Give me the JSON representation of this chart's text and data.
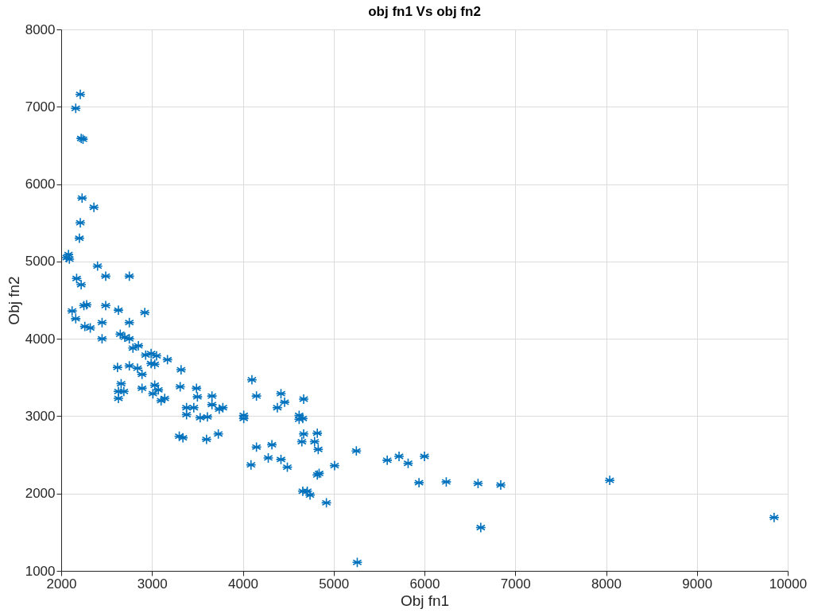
{
  "chart_data": {
    "type": "scatter",
    "title": "obj fn1 Vs obj fn2",
    "xlabel": "Obj fn1",
    "ylabel": "Obj fn2",
    "xlim": [
      2000,
      10000
    ],
    "xticks": [
      2000,
      3000,
      4000,
      5000,
      6000,
      7000,
      8000,
      9000,
      10000
    ],
    "ylim": [
      1000,
      8000
    ],
    "yticks": [
      1000,
      2000,
      3000,
      4000,
      5000,
      6000,
      7000,
      8000
    ],
    "grid": true,
    "marker": "cross",
    "series": [
      {
        "color": "#0072bd",
        "x": [
          2210,
          2160,
          2220,
          2240,
          2230,
          2360,
          2210,
          2200,
          2080,
          2090,
          2060,
          2400,
          2170,
          2220,
          2490,
          2750,
          2120,
          2160,
          2250,
          2280,
          2490,
          2630,
          2920,
          2450,
          2750,
          2260,
          2320,
          2450,
          2650,
          2700,
          2750,
          2790,
          2850,
          2930,
          2990,
          3050,
          3170,
          2620,
          2750,
          2840,
          2890,
          2990,
          3030,
          3320,
          2660,
          2630,
          2690,
          2630,
          2890,
          3030,
          3070,
          3010,
          3100,
          3140,
          3310,
          3490,
          3500,
          3660,
          3660,
          3740,
          3780,
          3380,
          3460,
          3380,
          3530,
          3610,
          4010,
          4010,
          4100,
          4150,
          4420,
          4460,
          4380,
          4670,
          4620,
          4660,
          4620,
          3300,
          3340,
          3600,
          3730,
          4150,
          4320,
          4090,
          4280,
          4420,
          4490,
          4670,
          4650,
          4820,
          4790,
          4830,
          4840,
          4820,
          4660,
          4710,
          4740,
          4920,
          5010,
          5250,
          5260,
          5590,
          5720,
          5820,
          6000,
          5940,
          6240,
          6590,
          6620,
          6840,
          8040,
          9850
        ],
        "values": [
          7160,
          6980,
          6590,
          6580,
          5820,
          5700,
          5500,
          5300,
          5090,
          5030,
          5050,
          4940,
          4780,
          4700,
          4810,
          4810,
          4360,
          4260,
          4430,
          4440,
          4430,
          4370,
          4340,
          4210,
          4210,
          4160,
          4140,
          4000,
          4060,
          4020,
          4000,
          3880,
          3910,
          3790,
          3810,
          3780,
          3730,
          3630,
          3650,
          3620,
          3540,
          3680,
          3670,
          3600,
          3420,
          3320,
          3320,
          3230,
          3360,
          3400,
          3340,
          3290,
          3200,
          3230,
          3380,
          3360,
          3250,
          3260,
          3150,
          3090,
          3110,
          3110,
          3110,
          3020,
          2980,
          2990,
          3010,
          2970,
          3470,
          3260,
          3290,
          3180,
          3110,
          3220,
          3010,
          2970,
          2960,
          2740,
          2720,
          2700,
          2770,
          2600,
          2630,
          2370,
          2460,
          2440,
          2340,
          2770,
          2670,
          2780,
          2670,
          2570,
          2260,
          2240,
          2030,
          2030,
          1980,
          1880,
          2360,
          2550,
          1110,
          2430,
          2480,
          2390,
          2480,
          2140,
          2150,
          2130,
          1560,
          2110,
          2170,
          1690
        ]
      }
    ]
  }
}
